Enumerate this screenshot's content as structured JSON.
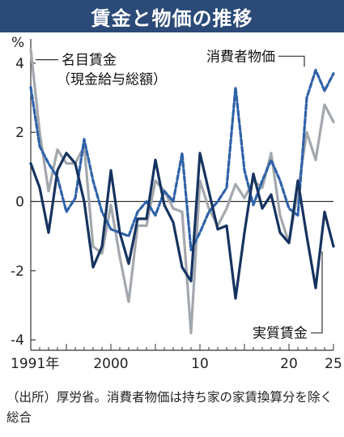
{
  "title": "賃金と物価の推移",
  "source_note": "（出所）厚労省。消費者物価は持ち家の家賃換算分を除く総合",
  "colors": {
    "title_bg": "#2b4a78",
    "nominal_wage": "#a3a8ad",
    "cpi": "#2f62a8",
    "real_wage": "#16335f"
  },
  "chart_data": {
    "type": "line",
    "y_unit": "%",
    "x_tick_labels": [
      "1991年",
      "2000",
      "10",
      "20",
      "25"
    ],
    "x_tick_years": [
      1991,
      2000,
      2010,
      2020,
      2025
    ],
    "xlim": [
      1991,
      2025
    ],
    "ylim": [
      -4.3,
      4.7
    ],
    "y_ticks": [
      4,
      2,
      0,
      -2,
      -4
    ],
    "zero_line": true,
    "x": [
      1991,
      1992,
      1993,
      1994,
      1995,
      1996,
      1997,
      1998,
      1999,
      2000,
      2001,
      2002,
      2003,
      2004,
      2005,
      2006,
      2007,
      2008,
      2009,
      2010,
      2011,
      2012,
      2013,
      2014,
      2015,
      2016,
      2017,
      2018,
      2019,
      2020,
      2021,
      2022,
      2023,
      2024,
      2025
    ],
    "series": [
      {
        "name": "名目賃金（現金給与総額）",
        "label_lines": [
          "名目賃金",
          "（現金給与総額）"
        ],
        "style": "solid",
        "values": [
          4.4,
          2.0,
          0.3,
          1.5,
          1.1,
          1.1,
          1.6,
          -1.3,
          -1.5,
          -0.1,
          -1.6,
          -2.9,
          -0.7,
          -0.7,
          0.6,
          0.3,
          -0.2,
          -0.3,
          -3.8,
          0.6,
          -0.2,
          -0.7,
          -0.2,
          0.5,
          0.1,
          0.6,
          0.4,
          1.4,
          -0.4,
          -1.2,
          0.3,
          2.0,
          1.2,
          2.8,
          2.3
        ]
      },
      {
        "name": "消費者物価",
        "label_lines": [
          "消費者物価"
        ],
        "style": "dashed",
        "values": [
          3.3,
          1.6,
          1.1,
          0.7,
          -0.3,
          0.1,
          1.8,
          0.6,
          -0.3,
          -0.8,
          -0.9,
          -1.0,
          -0.3,
          0.0,
          -0.4,
          0.3,
          0.0,
          1.4,
          -1.4,
          -0.9,
          -0.3,
          0.0,
          0.4,
          3.3,
          0.9,
          -0.1,
          0.6,
          1.2,
          0.6,
          -0.2,
          -0.4,
          3.0,
          3.8,
          3.2,
          3.7
        ]
      },
      {
        "name": "実質賃金",
        "label_lines": [
          "実質賃金"
        ],
        "style": "solid",
        "values": [
          1.1,
          0.4,
          -0.9,
          0.9,
          1.4,
          1.1,
          0.0,
          -1.9,
          -1.3,
          0.9,
          -0.9,
          -1.8,
          -0.5,
          -0.5,
          1.2,
          -0.1,
          -0.6,
          -1.9,
          -2.3,
          1.4,
          0.3,
          -0.8,
          -0.7,
          -2.8,
          -0.9,
          0.8,
          -0.2,
          0.2,
          -0.9,
          -1.2,
          0.6,
          -1.0,
          -2.5,
          -0.3,
          -1.3
        ]
      }
    ]
  }
}
